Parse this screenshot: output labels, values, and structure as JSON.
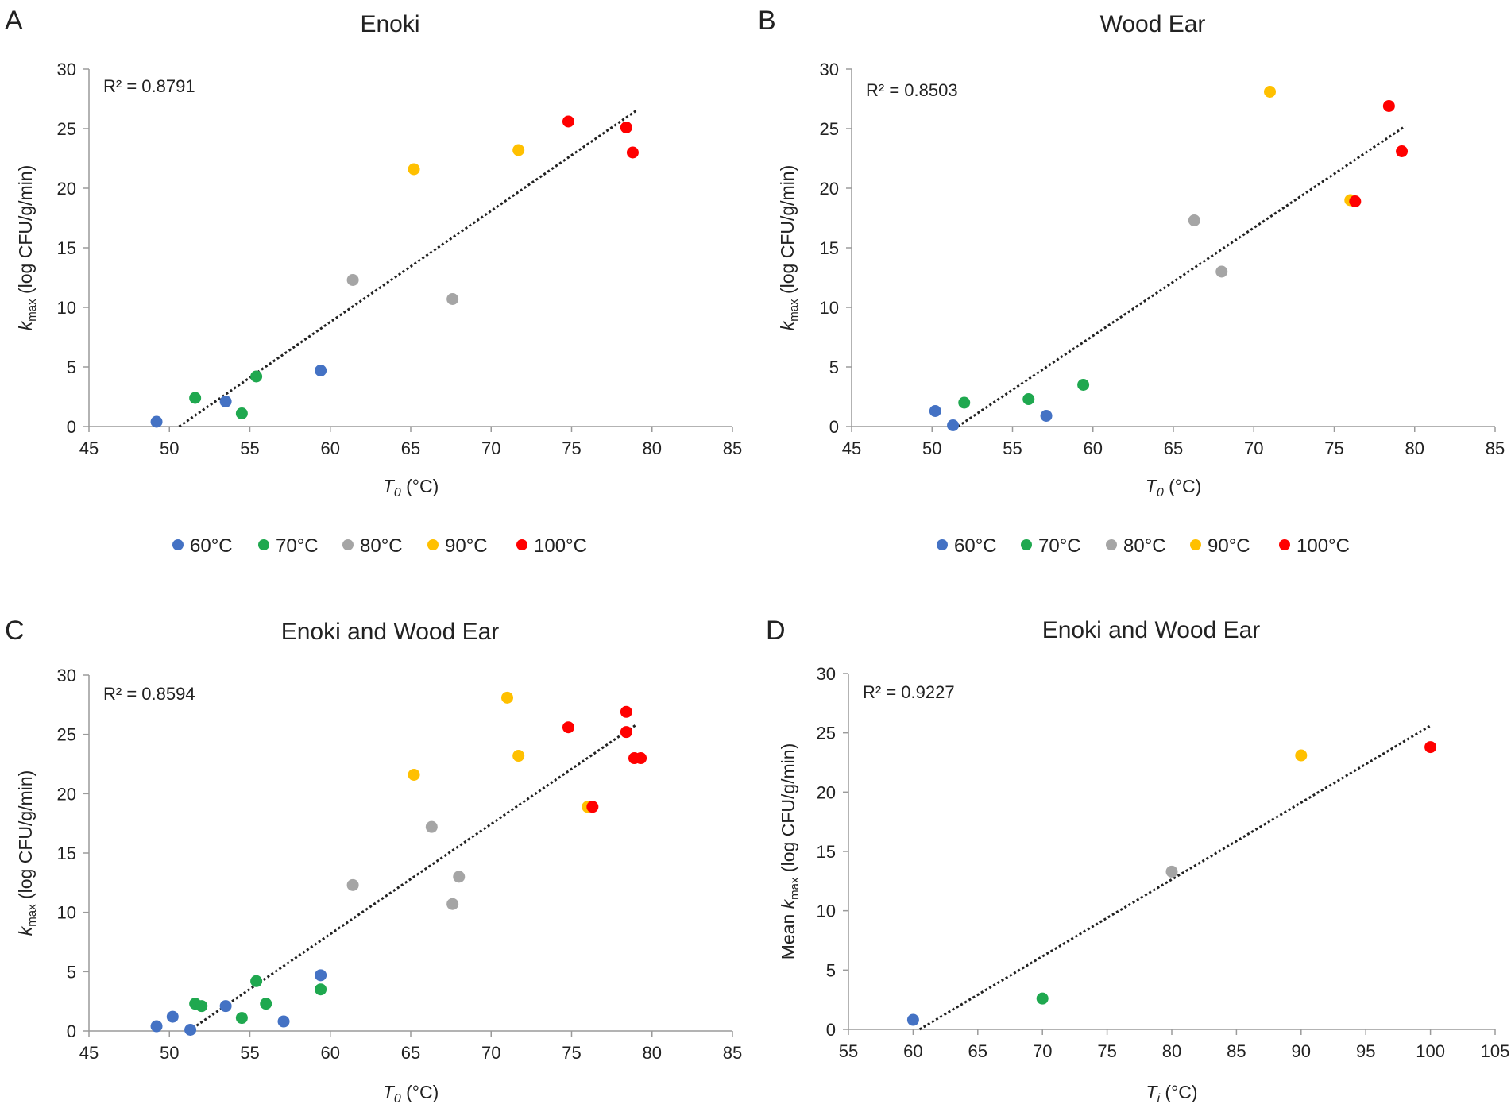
{
  "colors": {
    "60": "#4472c4",
    "70": "#1fa84f",
    "80": "#a5a5a5",
    "90": "#ffc000",
    "100": "#ff0000",
    "trend": "#222222",
    "axis": "#9a9a9a"
  },
  "chart_data": [
    {
      "type": "scatter",
      "panel": "A",
      "title": "Enoki",
      "r2": "R² = 0.8791",
      "xlabel": {
        "italic": "T",
        "sub": "0",
        "rest": " (°C)"
      },
      "ylabel": {
        "prefix": "",
        "italic": "k",
        "sub": "max",
        "rest": " (log CFU/g/min)"
      },
      "xlim": [
        45,
        85
      ],
      "xticks": [
        45,
        50,
        55,
        60,
        65,
        70,
        75,
        80,
        85
      ],
      "ylim": [
        0,
        30
      ],
      "yticks": [
        0,
        5,
        10,
        15,
        20,
        25,
        30
      ],
      "trendline": {
        "x": [
          50.6,
          79.0
        ],
        "y": [
          0,
          26.5
        ]
      },
      "legend": [
        {
          "key": "60",
          "label": "60°C"
        },
        {
          "key": "70",
          "label": "70°C"
        },
        {
          "key": "80",
          "label": "80°C"
        },
        {
          "key": "90",
          "label": "90°C"
        },
        {
          "key": "100",
          "label": "100°C"
        }
      ],
      "series": [
        {
          "key": "60",
          "name": "60°C",
          "points": [
            [
              49.2,
              0.4
            ],
            [
              53.5,
              2.1
            ],
            [
              59.4,
              4.7
            ]
          ]
        },
        {
          "key": "70",
          "name": "70°C",
          "points": [
            [
              51.6,
              2.4
            ],
            [
              54.5,
              1.1
            ],
            [
              55.4,
              4.2
            ]
          ]
        },
        {
          "key": "80",
          "name": "80°C",
          "points": [
            [
              61.4,
              12.3
            ],
            [
              67.6,
              10.7
            ]
          ]
        },
        {
          "key": "90",
          "name": "90°C",
          "points": [
            [
              65.2,
              21.6
            ],
            [
              71.7,
              23.2
            ]
          ]
        },
        {
          "key": "100",
          "name": "100°C",
          "points": [
            [
              74.8,
              25.6
            ],
            [
              78.4,
              25.1
            ],
            [
              78.8,
              23.0
            ]
          ]
        }
      ]
    },
    {
      "type": "scatter",
      "panel": "B",
      "title": "Wood Ear",
      "r2": "R² = 0.8503",
      "xlabel": {
        "italic": "T",
        "sub": "0",
        "rest": " (°C)"
      },
      "ylabel": {
        "prefix": "",
        "italic": "k",
        "sub": "max",
        "rest": " (log CFU/g/min)"
      },
      "xlim": [
        45,
        85
      ],
      "xticks": [
        45,
        50,
        55,
        60,
        65,
        70,
        75,
        80,
        85
      ],
      "ylim": [
        0,
        30
      ],
      "yticks": [
        0,
        5,
        10,
        15,
        20,
        25,
        30
      ],
      "trendline": {
        "x": [
          51.6,
          79.4
        ],
        "y": [
          0,
          25.2
        ]
      },
      "legend": [
        {
          "key": "60",
          "label": "60°C"
        },
        {
          "key": "70",
          "label": "70°C"
        },
        {
          "key": "80",
          "label": "80°C"
        },
        {
          "key": "90",
          "label": "90°C"
        },
        {
          "key": "100",
          "label": "100°C"
        }
      ],
      "series": [
        {
          "key": "60",
          "name": "60°C",
          "points": [
            [
              50.2,
              1.3
            ],
            [
              51.3,
              0.1
            ],
            [
              57.1,
              0.9
            ]
          ]
        },
        {
          "key": "70",
          "name": "70°C",
          "points": [
            [
              52.0,
              2.0
            ],
            [
              56.0,
              2.3
            ],
            [
              59.4,
              3.5
            ]
          ]
        },
        {
          "key": "80",
          "name": "80°C",
          "points": [
            [
              66.3,
              17.3
            ],
            [
              68.0,
              13.0
            ]
          ]
        },
        {
          "key": "90",
          "name": "90°C",
          "points": [
            [
              71.0,
              28.1
            ],
            [
              76.0,
              19.0
            ]
          ]
        },
        {
          "key": "100",
          "name": "100°C",
          "points": [
            [
              78.4,
              26.9
            ],
            [
              76.3,
              18.9
            ],
            [
              79.2,
              23.1
            ]
          ]
        }
      ]
    },
    {
      "type": "scatter",
      "panel": "C",
      "title": "Enoki and Wood Ear",
      "r2": "R² = 0.8594",
      "xlabel": {
        "italic": "T",
        "sub": "0",
        "rest": " (°C)"
      },
      "ylabel": {
        "prefix": "",
        "italic": "k",
        "sub": "max",
        "rest": " (log CFU/g/min)"
      },
      "xlim": [
        45,
        85
      ],
      "xticks": [
        45,
        50,
        55,
        60,
        65,
        70,
        75,
        80,
        85
      ],
      "ylim": [
        0,
        30
      ],
      "yticks": [
        0,
        5,
        10,
        15,
        20,
        25,
        30
      ],
      "trendline": {
        "x": [
          51.2,
          79.0
        ],
        "y": [
          0,
          25.8
        ]
      },
      "legend": [],
      "series": [
        {
          "key": "60",
          "name": "60°C",
          "points": [
            [
              49.2,
              0.4
            ],
            [
              50.2,
              1.2
            ],
            [
              51.3,
              0.1
            ],
            [
              53.5,
              2.1
            ],
            [
              57.1,
              0.8
            ],
            [
              59.4,
              4.7
            ]
          ]
        },
        {
          "key": "70",
          "name": "70°C",
          "points": [
            [
              51.6,
              2.3
            ],
            [
              52.0,
              2.1
            ],
            [
              54.5,
              1.1
            ],
            [
              55.4,
              4.2
            ],
            [
              56.0,
              2.3
            ],
            [
              59.4,
              3.5
            ]
          ]
        },
        {
          "key": "80",
          "name": "80°C",
          "points": [
            [
              61.4,
              12.3
            ],
            [
              66.3,
              17.2
            ],
            [
              67.6,
              10.7
            ],
            [
              68.0,
              13.0
            ]
          ]
        },
        {
          "key": "90",
          "name": "90°C",
          "points": [
            [
              65.2,
              21.6
            ],
            [
              71.0,
              28.1
            ],
            [
              71.7,
              23.2
            ],
            [
              76.0,
              18.9
            ]
          ]
        },
        {
          "key": "100",
          "name": "100°C",
          "points": [
            [
              74.8,
              25.6
            ],
            [
              78.4,
              26.9
            ],
            [
              78.4,
              25.2
            ],
            [
              78.9,
              23.0
            ],
            [
              79.3,
              23.0
            ],
            [
              76.3,
              18.9
            ]
          ]
        }
      ]
    },
    {
      "type": "scatter",
      "panel": "D",
      "title": "Enoki and Wood Ear",
      "r2": "R² = 0.9227",
      "xlabel": {
        "italic": "T",
        "sub": "i",
        "rest": " (°C)"
      },
      "ylabel": {
        "prefix": "Mean ",
        "italic": "k",
        "sub": "max",
        "rest": " (log CFU/g/min)"
      },
      "xlim": [
        55,
        105
      ],
      "xticks": [
        55,
        60,
        65,
        70,
        75,
        80,
        85,
        90,
        95,
        100,
        105
      ],
      "ylim": [
        0,
        30
      ],
      "yticks": [
        0,
        5,
        10,
        15,
        20,
        25,
        30
      ],
      "trendline": {
        "x": [
          60.5,
          100.0
        ],
        "y": [
          0,
          25.6
        ]
      },
      "legend": [],
      "series": [
        {
          "key": "60",
          "name": "60°C",
          "points": [
            [
              60,
              0.8
            ]
          ]
        },
        {
          "key": "70",
          "name": "70°C",
          "points": [
            [
              70,
              2.6
            ]
          ]
        },
        {
          "key": "80",
          "name": "80°C",
          "points": [
            [
              80,
              13.3
            ]
          ]
        },
        {
          "key": "90",
          "name": "90°C",
          "points": [
            [
              90,
              23.1
            ]
          ]
        },
        {
          "key": "100",
          "name": "100°C",
          "points": [
            [
              100,
              23.8
            ]
          ]
        }
      ]
    }
  ]
}
